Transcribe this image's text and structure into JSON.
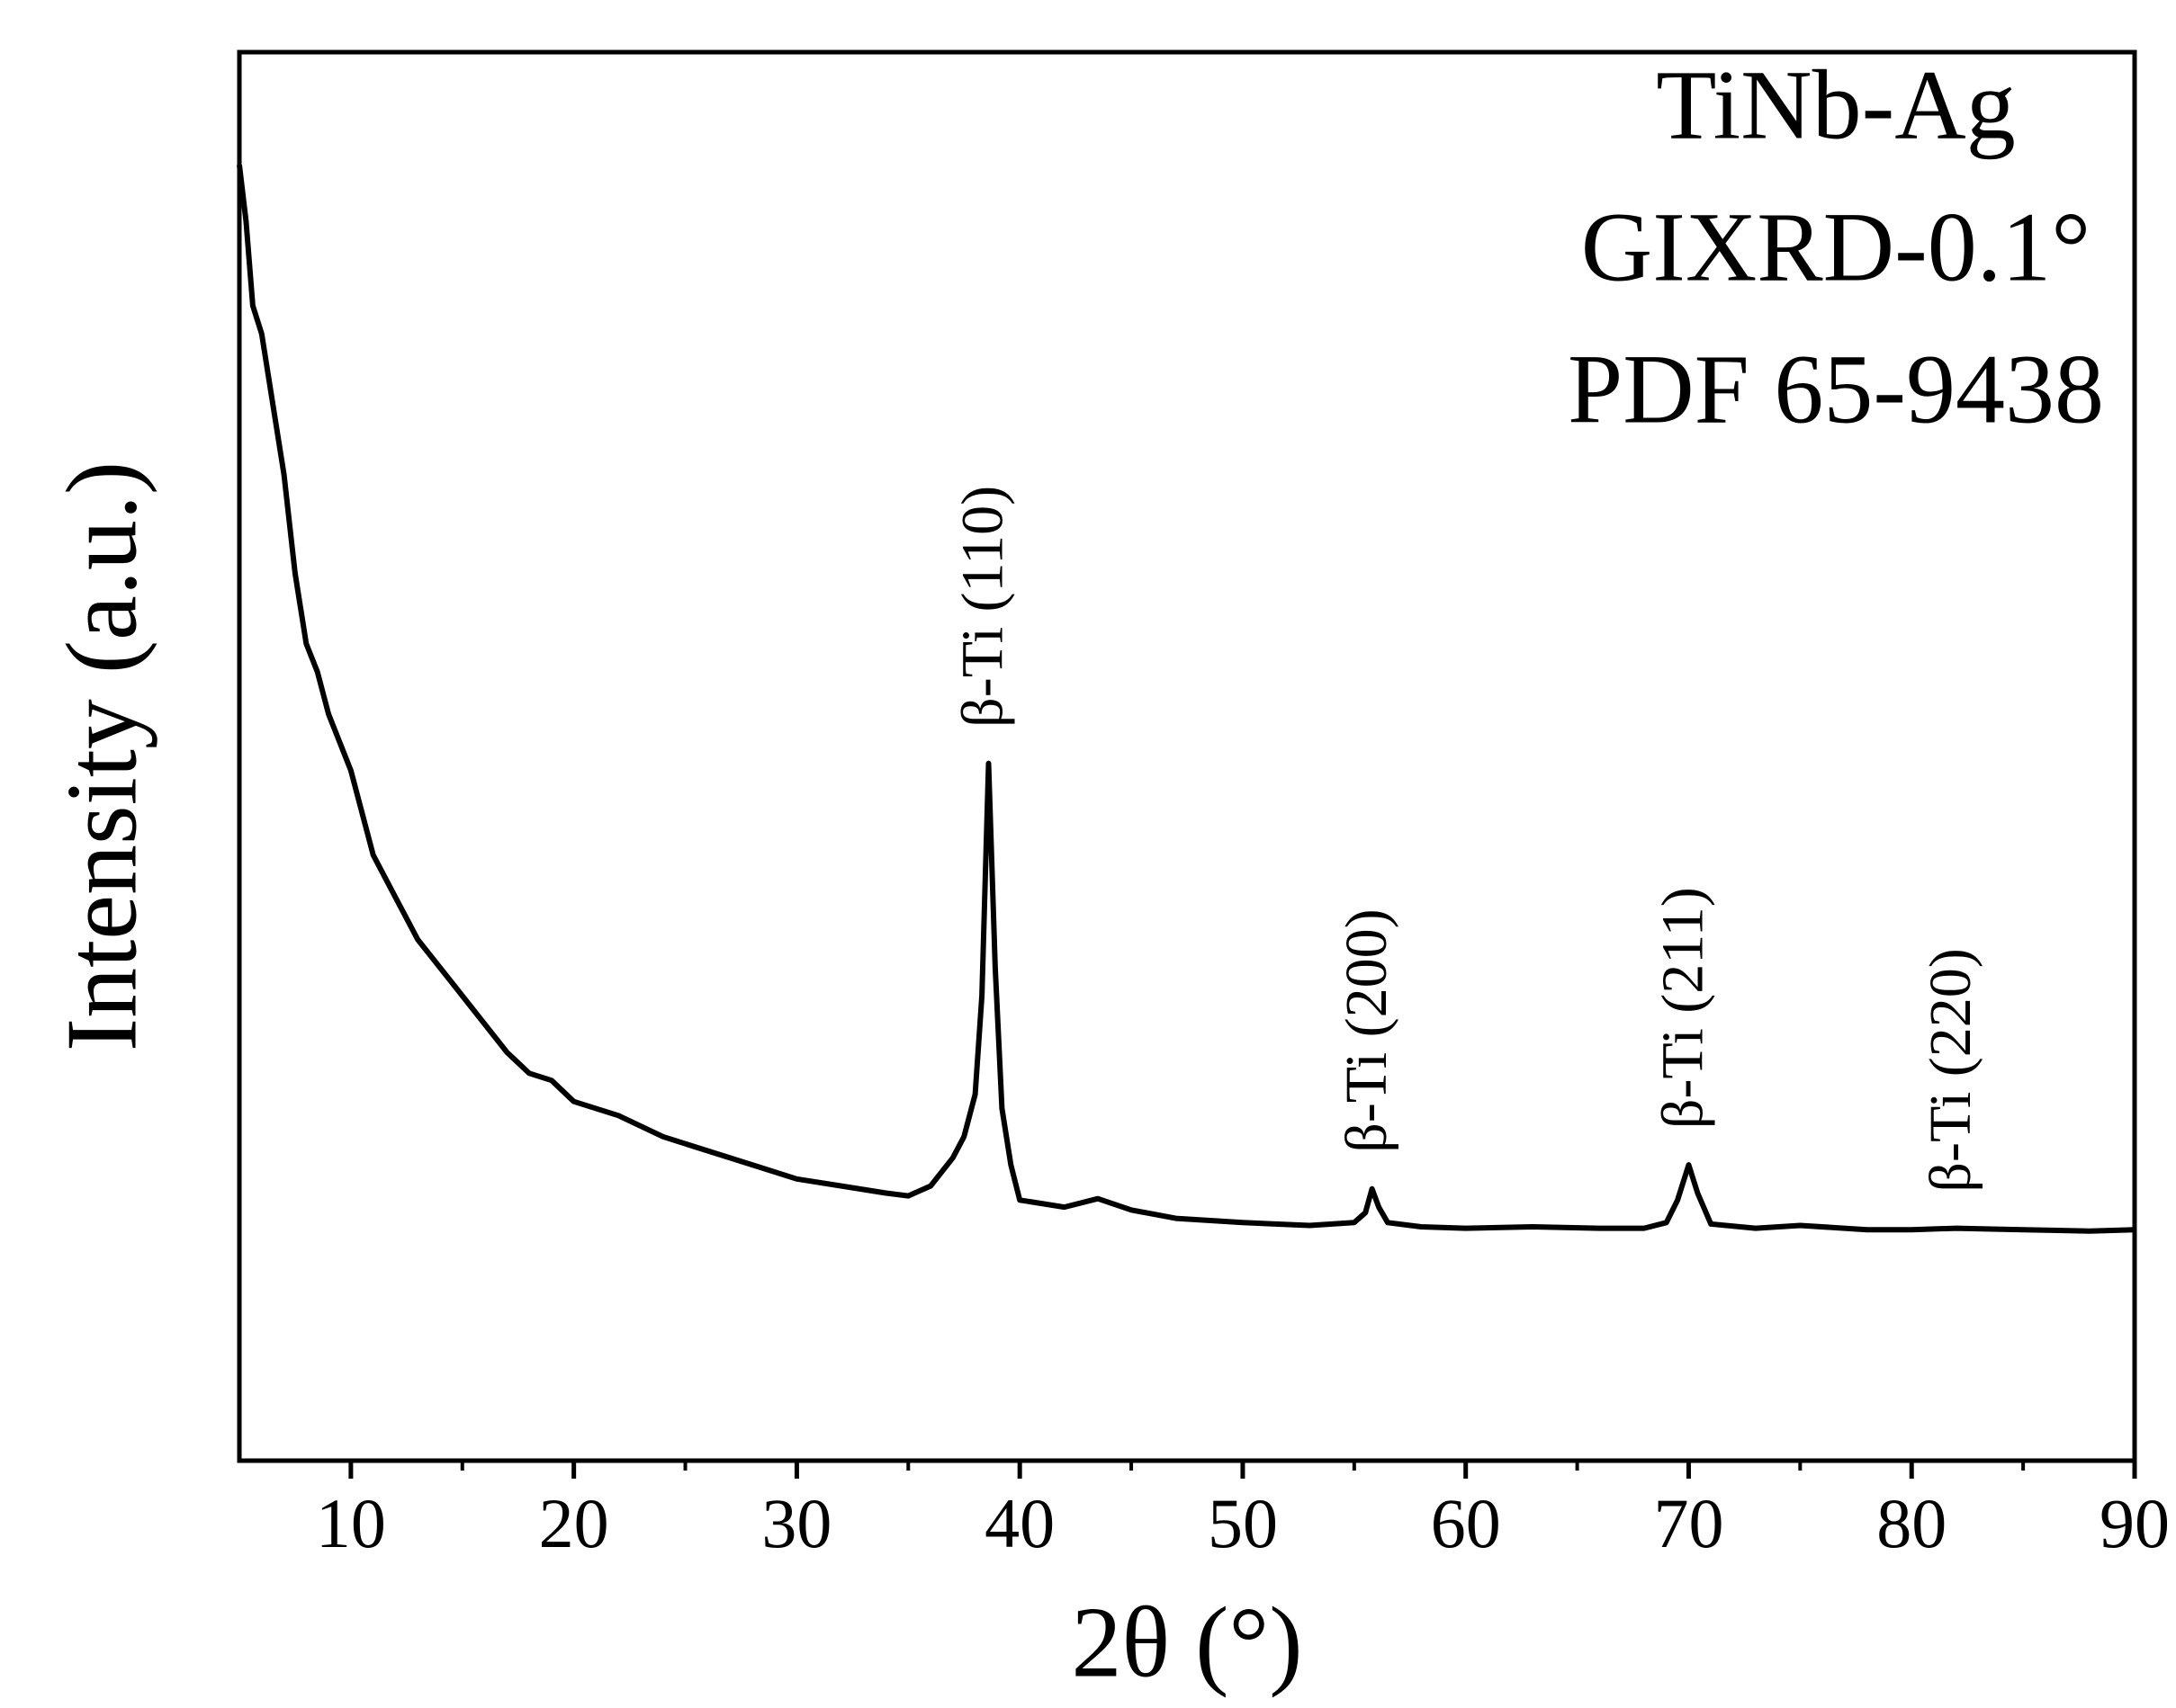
{
  "chart_data": {
    "type": "line",
    "x_label": "2θ (°)",
    "y_label": "Intensity (a.u.)",
    "corner_text": [
      "TiNb-Ag",
      "GIXRD-0.1°",
      "PDF 65-9438"
    ],
    "xlim": [
      5,
      90
    ],
    "ylim": [
      0,
      100
    ],
    "xticks": [
      10,
      20,
      30,
      40,
      50,
      60,
      70,
      80,
      90
    ],
    "xminor_ticks": [
      15,
      25,
      35,
      45,
      55,
      65,
      75,
      85
    ],
    "color": "#000000",
    "x": [
      5,
      5.3,
      5.6,
      6,
      6.5,
      7,
      7.5,
      8,
      8.5,
      9,
      9.5,
      10,
      11,
      12,
      13,
      14,
      15,
      16,
      17,
      18,
      19,
      20,
      22,
      24,
      26,
      28,
      30,
      32,
      34,
      35,
      36,
      37,
      37.5,
      38,
      38.3,
      38.6,
      38.9,
      39.2,
      39.6,
      40,
      42,
      43.5,
      45,
      47,
      50,
      53,
      55,
      55.5,
      55.8,
      56.1,
      56.5,
      58,
      60,
      63,
      66,
      68,
      69,
      69.5,
      70,
      70.4,
      71,
      73,
      75,
      78,
      80,
      82,
      85,
      88,
      90
    ],
    "values": [
      92,
      88,
      82,
      80,
      75,
      70,
      63,
      58,
      56,
      53,
      51,
      49,
      43,
      40,
      37,
      35,
      33,
      31,
      29,
      27.5,
      27,
      25.5,
      24.5,
      23,
      22,
      21,
      20,
      19.5,
      19,
      18.8,
      19.5,
      21.5,
      23,
      26,
      33,
      49.5,
      35,
      25,
      21,
      18.5,
      18,
      18.6,
      17.8,
      17.2,
      16.9,
      16.7,
      16.9,
      17.6,
      19.3,
      18,
      16.9,
      16.6,
      16.5,
      16.6,
      16.5,
      16.5,
      16.9,
      18.5,
      21,
      19,
      16.8,
      16.5,
      16.7,
      16.4,
      16.4,
      16.5,
      16.4,
      16.3,
      16.4
    ],
    "annotations": [
      {
        "text": "β-Ti (110)",
        "x": 38.6
      },
      {
        "text": "β-Ti (200)",
        "x": 55.8
      },
      {
        "text": "β-Ti (211)",
        "x": 70
      },
      {
        "text": "β-Ti (220)",
        "x": 82
      }
    ]
  }
}
